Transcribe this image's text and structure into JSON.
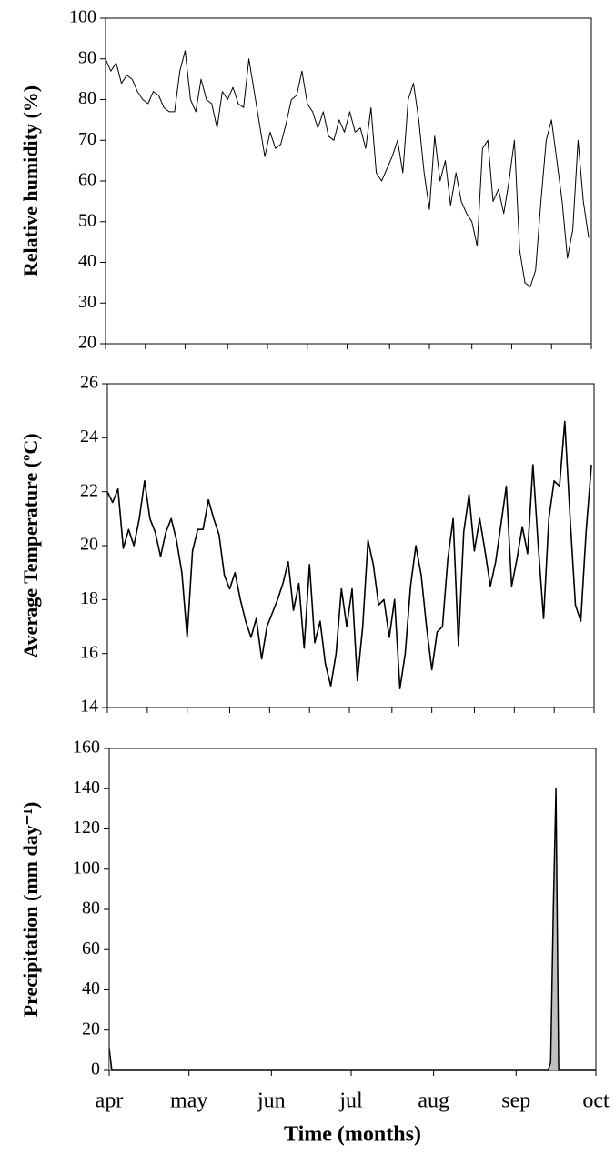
{
  "chart_data": [
    {
      "type": "line",
      "ylabel": "Relative humidity (%)",
      "color": "#000000",
      "xlim": [
        0,
        183
      ],
      "xticks": [
        0,
        15,
        30,
        46,
        61,
        76,
        91,
        107,
        122,
        138,
        153,
        168,
        183
      ],
      "ylim": [
        20,
        100
      ],
      "yticks": [
        20,
        30,
        40,
        50,
        60,
        70,
        80,
        90,
        100
      ],
      "x": [
        0,
        2,
        4,
        6,
        8,
        10,
        12,
        14,
        16,
        18,
        20,
        22,
        24,
        26,
        28,
        30,
        32,
        34,
        36,
        38,
        40,
        42,
        44,
        46,
        48,
        50,
        52,
        54,
        56,
        58,
        60,
        62,
        64,
        66,
        68,
        70,
        72,
        74,
        76,
        78,
        80,
        82,
        84,
        86,
        88,
        90,
        92,
        94,
        96,
        98,
        100,
        102,
        104,
        106,
        108,
        110,
        112,
        114,
        116,
        118,
        120,
        122,
        124,
        126,
        128,
        130,
        132,
        134,
        136,
        138,
        140,
        142,
        144,
        146,
        148,
        150,
        152,
        154,
        156,
        158,
        160,
        162,
        164,
        166,
        168,
        170,
        172,
        174,
        176,
        178,
        180,
        182
      ],
      "values": [
        90,
        87,
        89,
        84,
        86,
        85,
        82,
        80,
        79,
        82,
        81,
        78,
        77,
        77,
        87,
        92,
        80,
        77,
        85,
        80,
        79,
        73,
        82,
        80,
        83,
        79,
        78,
        90,
        82,
        74,
        66,
        72,
        68,
        69,
        74,
        80,
        81,
        87,
        79,
        77,
        73,
        77,
        71,
        70,
        75,
        72,
        77,
        72,
        73,
        68,
        78,
        62,
        60,
        63,
        66,
        70,
        62,
        80,
        84,
        75,
        62,
        53,
        71,
        60,
        65,
        54,
        62,
        55,
        52,
        50,
        44,
        68,
        70,
        55,
        58,
        52,
        60,
        70,
        43,
        35,
        34,
        38,
        55,
        70,
        75,
        65,
        55,
        41,
        48,
        70,
        55,
        46
      ]
    },
    {
      "type": "line",
      "ylabel": "Average Temperature (ºC)",
      "color": "#000000",
      "xlim": [
        0,
        183
      ],
      "xticks": [
        0,
        15,
        30,
        46,
        61,
        76,
        91,
        107,
        122,
        138,
        153,
        168,
        183
      ],
      "ylim": [
        14,
        26
      ],
      "yticks": [
        14,
        16,
        18,
        20,
        22,
        24,
        26
      ],
      "x": [
        0,
        2,
        4,
        6,
        8,
        10,
        12,
        14,
        16,
        18,
        20,
        22,
        24,
        26,
        28,
        30,
        32,
        34,
        36,
        38,
        40,
        42,
        44,
        46,
        48,
        50,
        52,
        54,
        56,
        58,
        60,
        62,
        64,
        66,
        68,
        70,
        72,
        74,
        76,
        78,
        80,
        82,
        84,
        86,
        88,
        90,
        92,
        94,
        96,
        98,
        100,
        102,
        104,
        106,
        108,
        110,
        112,
        114,
        116,
        118,
        120,
        122,
        124,
        126,
        128,
        130,
        132,
        134,
        136,
        138,
        140,
        142,
        144,
        146,
        148,
        150,
        152,
        154,
        156,
        158,
        160,
        162,
        164,
        166,
        168,
        170,
        172,
        174,
        176,
        178,
        180,
        182
      ],
      "values": [
        22,
        21.6,
        22.1,
        19.9,
        20.6,
        20,
        21,
        22.4,
        21,
        20.5,
        19.6,
        20.5,
        21,
        20.2,
        19,
        16.6,
        19.8,
        20.6,
        20.6,
        21.7,
        21,
        20.4,
        18.9,
        18.4,
        19,
        18,
        17.2,
        16.6,
        17.3,
        15.8,
        17,
        17.5,
        18,
        18.6,
        19.4,
        17.6,
        18.6,
        16.2,
        19.3,
        16.4,
        17.2,
        15.6,
        14.8,
        16,
        18.4,
        17,
        18.4,
        15,
        17,
        20.2,
        19.3,
        17.8,
        18,
        16.6,
        18,
        14.7,
        16,
        18.5,
        20,
        18.9,
        17,
        15.4,
        16.8,
        17,
        19.5,
        21,
        16.3,
        20.5,
        21.9,
        19.8,
        21,
        19.8,
        18.5,
        19.4,
        20.8,
        22.2,
        18.5,
        19.5,
        20.7,
        19.7,
        23,
        20,
        17.3,
        21,
        22.4,
        22.2,
        24.6,
        21,
        17.8,
        17.2,
        20.5,
        23
      ]
    },
    {
      "type": "area",
      "ylabel": "Precipitation (mm day⁻¹)",
      "xlabel": "Time (months)",
      "color": "#000000",
      "fill": "#bfbfbf",
      "xlim": [
        0,
        183
      ],
      "xticks": [
        {
          "value": 0,
          "label": "apr"
        },
        {
          "value": 30,
          "label": "may"
        },
        {
          "value": 61,
          "label": "jun"
        },
        {
          "value": 91,
          "label": "jul"
        },
        {
          "value": 122,
          "label": "aug"
        },
        {
          "value": 153,
          "label": "sep"
        },
        {
          "value": 183,
          "label": "oct"
        }
      ],
      "ylim": [
        0,
        160
      ],
      "yticks": [
        0,
        20,
        40,
        60,
        80,
        100,
        120,
        140,
        160
      ],
      "x": [
        0,
        1,
        2,
        165,
        166,
        167,
        168,
        169,
        170,
        183
      ],
      "values": [
        11,
        0,
        0,
        0,
        4,
        80,
        140,
        0,
        0,
        0
      ]
    }
  ]
}
